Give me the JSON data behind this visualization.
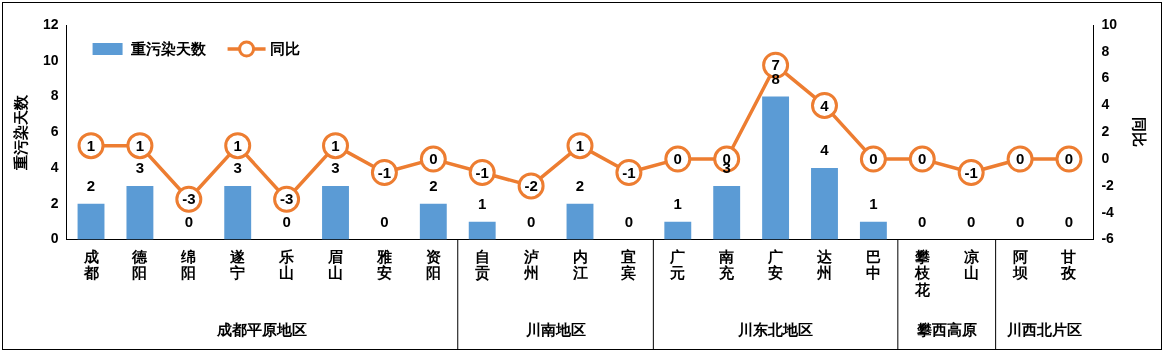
{
  "chart_data": {
    "type": "bar",
    "ylabel": "重污染天数",
    "y2label": "同比",
    "categories": [
      "成都",
      "德阳",
      "绵阳",
      "遂宁",
      "乐山",
      "眉山",
      "雅安",
      "资阳",
      "自贡",
      "泸州",
      "内江",
      "宜宾",
      "广元",
      "南充",
      "广安",
      "达州",
      "巴中",
      "攀枝花",
      "凉山",
      "阿坝",
      "甘孜"
    ],
    "series": [
      {
        "name": "重污染天数",
        "color": "#5b9bd5",
        "values": [
          2,
          3,
          0,
          3,
          0,
          3,
          0,
          2,
          1,
          0,
          2,
          0,
          1,
          3,
          8,
          4,
          1,
          0,
          0,
          0,
          0
        ]
      },
      {
        "name": "同比",
        "type": "line",
        "axis": "y2",
        "color": "#ed7d31",
        "marker": "circle",
        "values": [
          1,
          1,
          -3,
          1,
          -3,
          1,
          -1,
          0,
          -1,
          -2,
          1,
          -1,
          0,
          0,
          7,
          4,
          0,
          0,
          -1,
          0,
          0
        ]
      }
    ],
    "ylim": [
      0,
      12
    ],
    "yticks": [
      0,
      2,
      4,
      6,
      8,
      10,
      12
    ],
    "y2lim": [
      -6,
      10
    ],
    "y2ticks": [
      -6,
      -4,
      -2,
      0,
      2,
      4,
      6,
      8,
      10
    ],
    "data_labels": true,
    "grid": false,
    "legend": "top left",
    "annotations": [
      "成都平原地区",
      "川南地区",
      "川东北地区",
      "攀西高原",
      "川西北片区"
    ]
  }
}
